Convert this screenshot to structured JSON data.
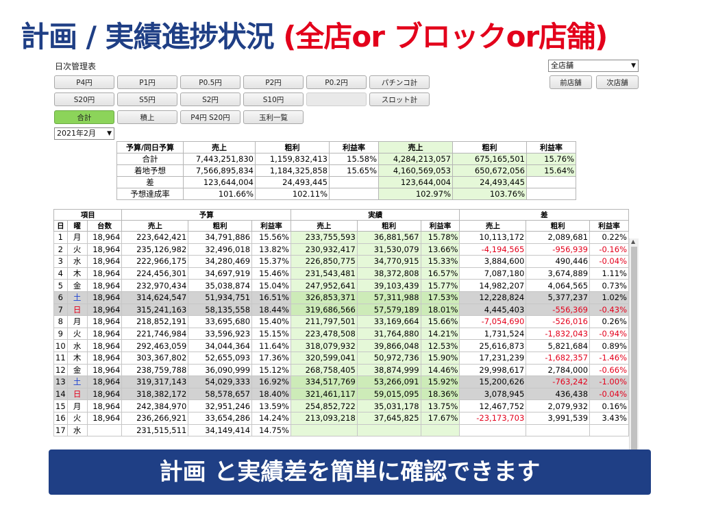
{
  "headline": {
    "part1": "計画 / 実績進捗状況 ",
    "part2": "(全店or ブロックor店舗)"
  },
  "window_title": "日次管理表",
  "store_select": {
    "value": "全店舗"
  },
  "prev_store": "前店舗",
  "next_store": "次店舗",
  "buttons_row1": [
    "P4円",
    "P1円",
    "P0.5円",
    "P2円",
    "P0.2円",
    "パチンコ計"
  ],
  "buttons_row2": [
    "S20円",
    "S5円",
    "S2円",
    "S10円",
    "",
    "スロット計"
  ],
  "buttons_row3": [
    "合計",
    "積上",
    "P4円 S20円",
    "玉利一覧"
  ],
  "month_select": {
    "value": "2021年2月"
  },
  "summary": {
    "headers": [
      "予算/同日予算",
      "売上",
      "粗利",
      "利益率",
      "売上",
      "粗利",
      "利益率"
    ],
    "rows": [
      {
        "label": "合計",
        "v": [
          "7,443,251,830",
          "1,159,832,413",
          "15.58%",
          "4,284,213,057",
          "675,165,501",
          "15.76%"
        ]
      },
      {
        "label": "着地予想",
        "v": [
          "7,566,895,834",
          "1,184,325,858",
          "15.65%",
          "4,160,569,053",
          "650,672,056",
          "15.64%"
        ]
      },
      {
        "label": "差",
        "v": [
          "123,644,004",
          "24,493,445",
          "",
          "123,644,004",
          "24,493,445",
          ""
        ]
      },
      {
        "label": "予想達成率",
        "v": [
          "101.66%",
          "102.11%",
          "",
          "102.97%",
          "103.76%",
          ""
        ]
      }
    ]
  },
  "table": {
    "group_headers": {
      "item": "項目",
      "budget": "予算",
      "actual": "実績",
      "diff": "差"
    },
    "columns": [
      "日",
      "曜",
      "台数",
      "売上",
      "粗利",
      "利益率",
      "売上",
      "粗利",
      "利益率",
      "売上",
      "粗利",
      "利益率"
    ],
    "rows": [
      [
        "1",
        "月",
        "18,964",
        "223,642,421",
        "34,791,886",
        "15.56%",
        "233,755,593",
        "36,881,567",
        "15.78%",
        "10,113,172",
        "2,089,681",
        "0.22%"
      ],
      [
        "2",
        "火",
        "18,964",
        "235,126,982",
        "32,496,018",
        "13.82%",
        "230,932,417",
        "31,530,079",
        "13.66%",
        "-4,194,565",
        "-956,939",
        "-0.16%"
      ],
      [
        "3",
        "水",
        "18,964",
        "222,966,175",
        "34,280,469",
        "15.37%",
        "226,850,775",
        "34,770,915",
        "15.33%",
        "3,884,600",
        "490,446",
        "-0.04%"
      ],
      [
        "4",
        "木",
        "18,964",
        "224,456,301",
        "34,697,919",
        "15.46%",
        "231,543,481",
        "38,372,808",
        "16.57%",
        "7,087,180",
        "3,674,889",
        "1.11%"
      ],
      [
        "5",
        "金",
        "18,964",
        "232,970,434",
        "35,038,874",
        "15.04%",
        "247,952,641",
        "39,103,439",
        "15.77%",
        "14,982,207",
        "4,064,565",
        "0.73%"
      ],
      [
        "6",
        "土",
        "18,964",
        "314,624,547",
        "51,934,751",
        "16.51%",
        "326,853,371",
        "57,311,988",
        "17.53%",
        "12,228,824",
        "5,377,237",
        "1.02%"
      ],
      [
        "7",
        "日",
        "18,964",
        "315,241,163",
        "58,135,558",
        "18.44%",
        "319,686,566",
        "57,579,189",
        "18.01%",
        "4,445,403",
        "-556,369",
        "-0.43%"
      ],
      [
        "8",
        "月",
        "18,964",
        "218,852,191",
        "33,695,680",
        "15.40%",
        "211,797,501",
        "33,169,664",
        "15.66%",
        "-7,054,690",
        "-526,016",
        "0.26%"
      ],
      [
        "9",
        "火",
        "18,964",
        "221,746,984",
        "33,596,923",
        "15.15%",
        "223,478,508",
        "31,764,880",
        "14.21%",
        "1,731,524",
        "-1,832,043",
        "-0.94%"
      ],
      [
        "10",
        "水",
        "18,964",
        "292,463,059",
        "34,044,364",
        "11.64%",
        "318,079,932",
        "39,866,048",
        "12.53%",
        "25,616,873",
        "5,821,684",
        "0.89%"
      ],
      [
        "11",
        "木",
        "18,964",
        "303,367,802",
        "52,655,093",
        "17.36%",
        "320,599,041",
        "50,972,736",
        "15.90%",
        "17,231,239",
        "-1,682,357",
        "-1.46%"
      ],
      [
        "12",
        "金",
        "18,964",
        "238,759,788",
        "36,090,999",
        "15.12%",
        "268,758,405",
        "38,874,999",
        "14.46%",
        "29,998,617",
        "2,784,000",
        "-0.66%"
      ],
      [
        "13",
        "土",
        "18,964",
        "319,317,143",
        "54,029,333",
        "16.92%",
        "334,517,769",
        "53,266,091",
        "15.92%",
        "15,200,626",
        "-763,242",
        "-1.00%"
      ],
      [
        "14",
        "日",
        "18,964",
        "318,382,172",
        "58,578,657",
        "18.40%",
        "321,461,117",
        "59,015,095",
        "18.36%",
        "3,078,945",
        "436,438",
        "-0.04%"
      ],
      [
        "15",
        "月",
        "18,964",
        "242,384,970",
        "32,951,246",
        "13.59%",
        "254,852,722",
        "35,031,178",
        "13.75%",
        "12,467,752",
        "2,079,932",
        "0.16%"
      ],
      [
        "16",
        "火",
        "18,964",
        "236,266,921",
        "33,654,286",
        "14.24%",
        "213,093,218",
        "37,645,825",
        "17.67%",
        "-23,173,703",
        "3,991,539",
        "3.43%"
      ],
      [
        "17",
        "水",
        "",
        "231,515,511",
        "34,149,414",
        "14.75%",
        "",
        "",
        "",
        "",
        "",
        ""
      ]
    ]
  },
  "banner": "計画 と実績差を簡単に確認できます"
}
